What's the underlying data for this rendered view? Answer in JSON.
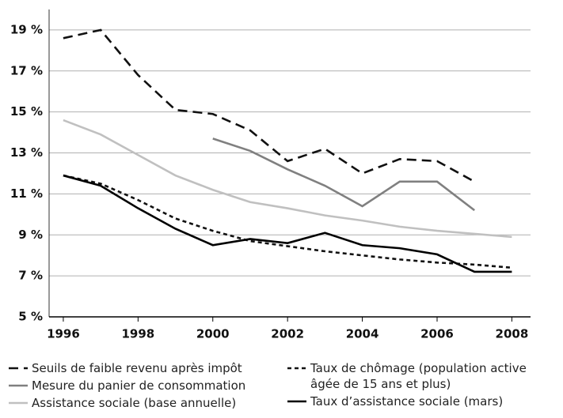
{
  "chart_data": {
    "type": "line",
    "x": [
      1996,
      1997,
      1998,
      1999,
      2000,
      2001,
      2002,
      2003,
      2004,
      2005,
      2006,
      2007,
      2008
    ],
    "xlim": [
      1995.62,
      2008.5
    ],
    "xticks": [
      1996,
      1998,
      2000,
      2002,
      2004,
      2006,
      2008
    ],
    "ylim": [
      5,
      20
    ],
    "yticks": [
      {
        "value": 5,
        "label": "5 %"
      },
      {
        "value": 7,
        "label": "7 %"
      },
      {
        "value": 9,
        "label": "9 %"
      },
      {
        "value": 11,
        "label": "11 %"
      },
      {
        "value": 13,
        "label": "13 %"
      },
      {
        "value": 15,
        "label": "15 %"
      },
      {
        "value": 17,
        "label": "17 %"
      },
      {
        "value": 19,
        "label": "19 %"
      }
    ],
    "grid": true,
    "series": [
      {
        "name": "Seuils de faible revenu après impôt",
        "color": "#111111",
        "line_style": "dashed",
        "values": [
          18.6,
          19.0,
          16.8,
          15.1,
          14.9,
          14.1,
          12.6,
          13.2,
          12.0,
          12.7,
          12.6,
          11.6,
          null
        ]
      },
      {
        "name": "Taux de chômage (population active âgée de 15 ans et plus)",
        "color": "#111111",
        "line_style": "short-dashed",
        "values": [
          11.9,
          11.5,
          10.7,
          9.8,
          9.2,
          8.7,
          8.45,
          8.2,
          8.0,
          7.8,
          7.65,
          7.55,
          7.4
        ]
      },
      {
        "name": "Mesure du panier de consommation",
        "color": "#808080",
        "line_style": "solid",
        "values": [
          null,
          null,
          null,
          null,
          13.7,
          13.1,
          12.2,
          11.4,
          10.4,
          11.6,
          11.6,
          10.2,
          null
        ]
      },
      {
        "name": "Taux d’assistance sociale (mars)",
        "color": "#000000",
        "line_style": "solid",
        "values": [
          11.9,
          11.4,
          10.3,
          9.3,
          8.5,
          8.8,
          8.6,
          9.1,
          8.5,
          8.35,
          8.05,
          7.2,
          7.2
        ]
      },
      {
        "name": "Assistance sociale (base annuelle)",
        "color": "#c0c0c0",
        "line_style": "solid",
        "values": [
          14.6,
          13.9,
          12.9,
          11.9,
          11.2,
          10.6,
          10.3,
          9.95,
          9.7,
          9.4,
          9.2,
          9.05,
          8.9
        ]
      }
    ]
  }
}
